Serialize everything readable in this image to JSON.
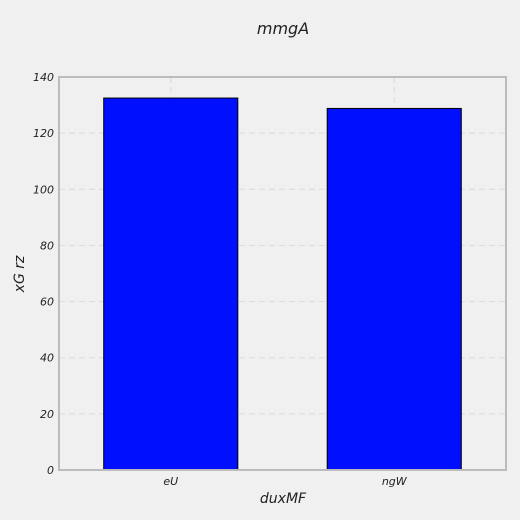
{
  "chart_data": {
    "type": "bar",
    "title": "mmgA",
    "xlabel": "duxMF",
    "ylabel": "xG rz",
    "categories": [
      "eU",
      "ngW"
    ],
    "values": [
      132.5,
      128.8
    ],
    "ylim": [
      0,
      140
    ],
    "yticks": [
      0,
      20,
      40,
      60,
      80,
      100,
      120,
      140
    ],
    "grid": true,
    "bar_color": "#0010ff",
    "axes_color": "#bcbcbc",
    "background_color": "#f0f0f0"
  }
}
